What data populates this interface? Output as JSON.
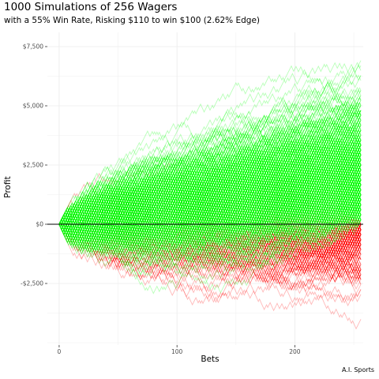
{
  "chart_data": {
    "type": "line",
    "title": "1000 Simulations of 256 Wagers",
    "subtitle": "with a 55% Win Rate, Risking $110 to win $100  (2.62% Edge)",
    "caption": "A.I. Sports",
    "xlabel": "Bets",
    "ylabel": "Profit",
    "xlim": [
      -10,
      258
    ],
    "ylim": [
      -5100,
      8100
    ],
    "x_ticks": [
      0,
      100,
      200
    ],
    "x_tick_labels": [
      "0",
      "100",
      "200"
    ],
    "y_ticks": [
      -2500,
      0,
      2500,
      5000,
      7500
    ],
    "y_tick_labels": [
      "-$2,500",
      "$0",
      "$2,500",
      "$5,000",
      "$7,500"
    ],
    "grid": true,
    "legend": "none",
    "reference_line_y": 0,
    "n_simulations": 1000,
    "n_bets": 256,
    "win_rate": 0.55,
    "win_amount": 100,
    "risk_amount": 110,
    "colors": {
      "final_profit_positive": "#00ff00",
      "final_profit_negative": "#ff0000",
      "zero_line": "#000000",
      "grid": "#ebebeb"
    }
  }
}
